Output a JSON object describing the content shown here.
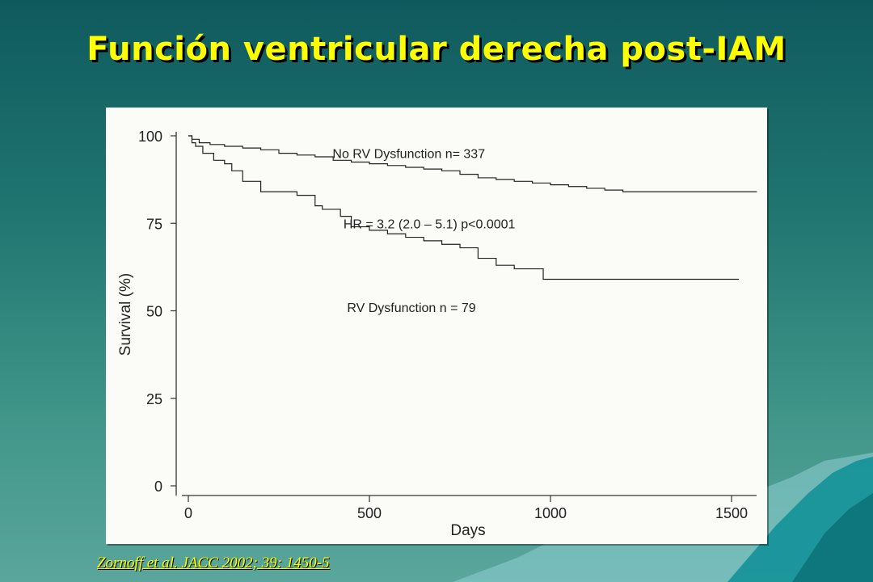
{
  "slide": {
    "title": "Función ventricular derecha post-IAM",
    "citation": "Zornoff et al. JACC 2002; 39: 1450-5"
  },
  "colors": {
    "title": "#ffff00",
    "citation": "#ffff00",
    "curves": "#222222"
  },
  "chart_data": {
    "type": "line",
    "xlabel": "Days",
    "ylabel": "Survival (%)",
    "xlim": [
      0,
      1600
    ],
    "ylim": [
      0,
      100
    ],
    "xticks": [
      0,
      500,
      1000,
      1500
    ],
    "yticks": [
      0,
      25,
      50,
      75,
      100
    ],
    "grid": false,
    "step": true,
    "annotations": [
      {
        "text": "No RV Dysfunction   n= 337",
        "x": 800,
        "y": 95
      },
      {
        "text": "HR = 3.2 (2.0 – 5.1)  p<0.0001",
        "x": 830,
        "y": 75
      },
      {
        "text": "RV Dysfunction    n = 79",
        "x": 840,
        "y": 51
      }
    ],
    "series": [
      {
        "name": "No RV Dysfunction",
        "x": [
          0,
          10,
          30,
          60,
          100,
          150,
          200,
          250,
          300,
          350,
          400,
          450,
          500,
          550,
          600,
          650,
          700,
          750,
          800,
          850,
          900,
          950,
          1000,
          1050,
          1100,
          1150,
          1200,
          1300,
          1400,
          1500,
          1570
        ],
        "y": [
          100,
          99,
          98,
          97.5,
          97,
          96.5,
          96,
          95,
          94.5,
          94,
          93,
          92.5,
          92,
          91.5,
          91,
          90.5,
          90,
          89,
          88,
          87.5,
          87,
          86.5,
          86,
          85.5,
          85,
          84.5,
          84,
          84,
          84,
          84,
          84
        ]
      },
      {
        "name": "RV Dysfunction",
        "x": [
          0,
          10,
          20,
          40,
          70,
          100,
          120,
          150,
          200,
          250,
          300,
          350,
          370,
          420,
          450,
          500,
          550,
          600,
          650,
          700,
          750,
          800,
          850,
          900,
          950,
          980,
          1050,
          1200,
          1400,
          1520
        ],
        "y": [
          100,
          98,
          97,
          95,
          93,
          92,
          90,
          87,
          84,
          84,
          83,
          80,
          79,
          77,
          74,
          73,
          72,
          71,
          70,
          69,
          68,
          65,
          63,
          62,
          62,
          59,
          59,
          59,
          59,
          59
        ]
      }
    ]
  }
}
